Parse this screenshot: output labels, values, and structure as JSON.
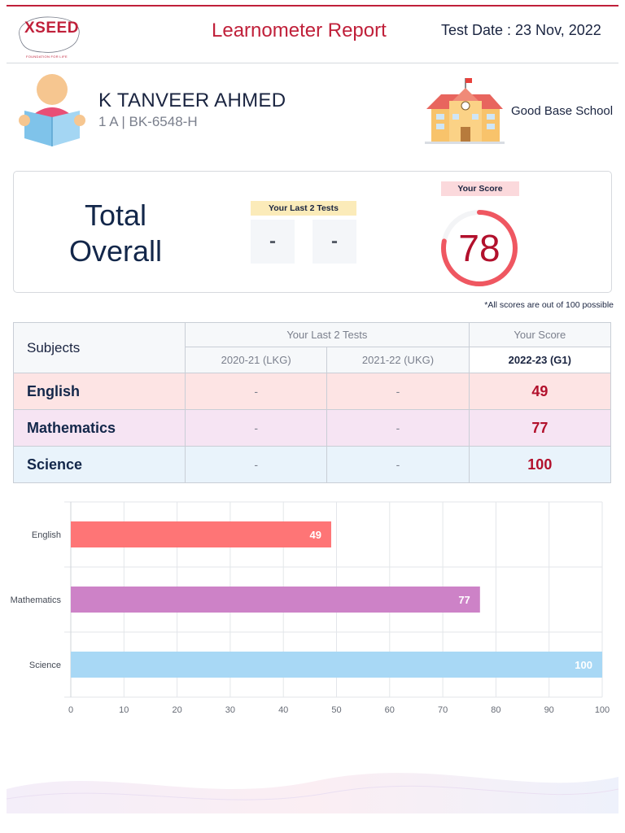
{
  "header": {
    "logo_text": "XSEED",
    "logo_tagline": "FOUNDATION FOR LIFE",
    "title": "Learnometer Report",
    "test_date": "Test Date : 23 Nov, 2022",
    "accent_color": "#c0203a"
  },
  "student": {
    "name": "K TANVEER AHMED",
    "class_code": "1 A | BK-6548-H",
    "school": "Good Base School"
  },
  "overall": {
    "title_line1": "Total",
    "title_line2": "Overall",
    "last_tests_label": "Your Last 2 Tests",
    "last_test_1": "-",
    "last_test_2": "-",
    "score_label": "Your Score",
    "score": "78",
    "score_fraction": 0.78
  },
  "footnote": "*All scores are out of 100 possible",
  "table": {
    "subjects_header": "Subjects",
    "last_tests_header": "Your Last 2 Tests",
    "score_header": "Your Score",
    "years": [
      "2020-21 (LKG)",
      "2021-22 (UKG)",
      "2022-23 (G1)"
    ],
    "rows": [
      {
        "subject": "English",
        "y1": "-",
        "y2": "-",
        "score": "49"
      },
      {
        "subject": "Mathematics",
        "y1": "-",
        "y2": "-",
        "score": "77"
      },
      {
        "subject": "Science",
        "y1": "-",
        "y2": "-",
        "score": "100"
      }
    ]
  },
  "chart_data": {
    "type": "bar",
    "orientation": "horizontal",
    "categories": [
      "English",
      "Mathematics",
      "Science"
    ],
    "values": [
      49,
      77,
      100
    ],
    "colors": [
      "#fe7576",
      "#cd82c7",
      "#a8d8f5"
    ],
    "xlim": [
      0,
      100
    ],
    "x_ticks": [
      0,
      10,
      20,
      30,
      40,
      50,
      60,
      70,
      80,
      90,
      100
    ],
    "grid": true,
    "data_labels": true
  }
}
